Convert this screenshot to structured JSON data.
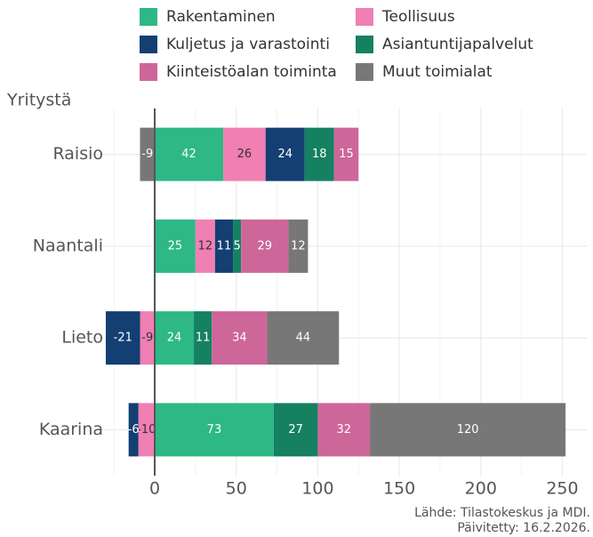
{
  "chart_data": {
    "type": "bar",
    "orientation": "horizontal",
    "stacked": true,
    "y_axis_label": "Yritystä",
    "categories": [
      "Raisio",
      "Naantali",
      "Lieto",
      "Kaarina"
    ],
    "series": [
      {
        "name": "Rakentaminen",
        "color": "#2db886",
        "values": [
          42,
          25,
          24,
          73
        ]
      },
      {
        "name": "Teollisuus",
        "color": "#f07fb3",
        "values": [
          26,
          12,
          -9,
          -10
        ]
      },
      {
        "name": "Kuljetus ja varastointi",
        "color": "#133f72",
        "values": [
          24,
          11,
          -21,
          -6
        ]
      },
      {
        "name": "Asiantuntijapalvelut",
        "color": "#158161",
        "values": [
          18,
          5,
          11,
          27
        ]
      },
      {
        "name": "Kiinteistöalan toiminta",
        "color": "#cd6699",
        "values": [
          15,
          29,
          34,
          32
        ]
      },
      {
        "name": "Muut toimialat",
        "color": "#777777",
        "values": [
          -9,
          12,
          44,
          120
        ]
      }
    ],
    "xlim": [
      -36,
      265
    ],
    "xticks": [
      0,
      50,
      100,
      150,
      200,
      250
    ],
    "grid": true,
    "caption": [
      "Lähde: Tilastokeskus ja MDI.",
      "Päivitetty: 16.2.2026."
    ]
  }
}
